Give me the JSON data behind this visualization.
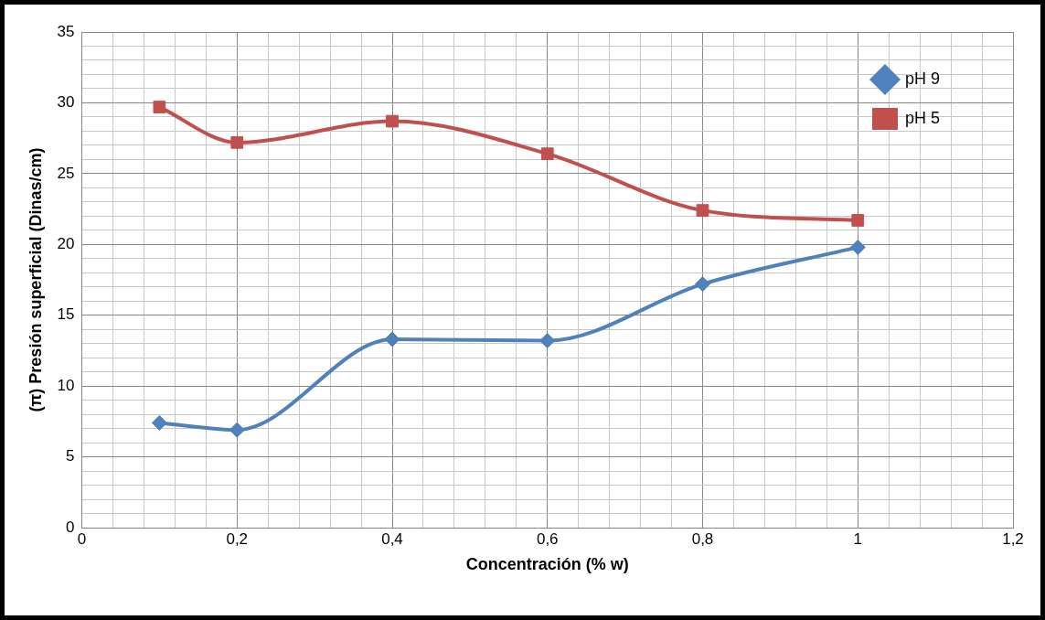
{
  "chart_data": {
    "type": "line",
    "xlabel": "Concentración (% w)",
    "ylabel": "(π) Presión superficial (Dinas/cm)",
    "x": [
      0.1,
      0.2,
      0.4,
      0.6,
      0.8,
      1
    ],
    "series": [
      {
        "name": "pH 9",
        "color": "#4f81bd",
        "marker": "diamond",
        "values": [
          7.4,
          6.9,
          13.3,
          13.2,
          17.2,
          19.8
        ]
      },
      {
        "name": "pH 5",
        "color": "#c0504d",
        "marker": "square",
        "values": [
          29.7,
          27.2,
          28.7,
          26.4,
          22.4,
          21.7
        ]
      }
    ],
    "xlim": [
      0,
      1.2
    ],
    "xticks": [
      {
        "value": 0,
        "label": "0"
      },
      {
        "value": 0.04,
        "label": null
      },
      {
        "value": 0.08,
        "label": null
      },
      {
        "value": 0.12,
        "label": null
      },
      {
        "value": 0.16,
        "label": null
      },
      {
        "value": 0.2,
        "label": "0,2"
      },
      {
        "value": 0.24,
        "label": null
      },
      {
        "value": 0.28,
        "label": null
      },
      {
        "value": 0.32,
        "label": null
      },
      {
        "value": 0.36,
        "label": null
      },
      {
        "value": 0.4,
        "label": "0,4"
      },
      {
        "value": 0.44,
        "label": null
      },
      {
        "value": 0.48,
        "label": null
      },
      {
        "value": 0.52,
        "label": null
      },
      {
        "value": 0.56,
        "label": null
      },
      {
        "value": 0.6,
        "label": "0,6"
      },
      {
        "value": 0.64,
        "label": null
      },
      {
        "value": 0.68,
        "label": null
      },
      {
        "value": 0.72,
        "label": null
      },
      {
        "value": 0.76,
        "label": null
      },
      {
        "value": 0.8,
        "label": "0,8"
      },
      {
        "value": 0.84,
        "label": null
      },
      {
        "value": 0.88,
        "label": null
      },
      {
        "value": 0.92,
        "label": null
      },
      {
        "value": 0.96,
        "label": null
      },
      {
        "value": 1,
        "label": "1"
      },
      {
        "value": 1.04,
        "label": null
      },
      {
        "value": 1.08,
        "label": null
      },
      {
        "value": 1.12,
        "label": null
      },
      {
        "value": 1.16,
        "label": null
      },
      {
        "value": 1.2,
        "label": "1,2"
      }
    ],
    "ylim": [
      0,
      35
    ],
    "yticks": [
      0,
      {
        "value": 1,
        "label": null
      },
      {
        "value": 2,
        "label": null
      },
      {
        "value": 3,
        "label": null
      },
      {
        "value": 4,
        "label": null
      },
      5,
      {
        "value": 6,
        "label": null
      },
      {
        "value": 7,
        "label": null
      },
      {
        "value": 8,
        "label": null
      },
      {
        "value": 9,
        "label": null
      },
      10,
      {
        "value": 11,
        "label": null
      },
      {
        "value": 12,
        "label": null
      },
      {
        "value": 13,
        "label": null
      },
      {
        "value": 14,
        "label": null
      },
      15,
      {
        "value": 16,
        "label": null
      },
      {
        "value": 17,
        "label": null
      },
      {
        "value": 18,
        "label": null
      },
      {
        "value": 19,
        "label": null
      },
      20,
      {
        "value": 21,
        "label": null
      },
      {
        "value": 22,
        "label": null
      },
      {
        "value": 23,
        "label": null
      },
      {
        "value": 24,
        "label": null
      },
      25,
      {
        "value": 26,
        "label": null
      },
      {
        "value": 27,
        "label": null
      },
      {
        "value": 28,
        "label": null
      },
      {
        "value": 29,
        "label": null
      },
      30,
      {
        "value": 31,
        "label": null
      },
      {
        "value": 32,
        "label": null
      },
      {
        "value": 33,
        "label": null
      },
      {
        "value": 34,
        "label": null
      },
      35
    ],
    "grid": true,
    "legend": "top right",
    "line_style": "solid"
  }
}
